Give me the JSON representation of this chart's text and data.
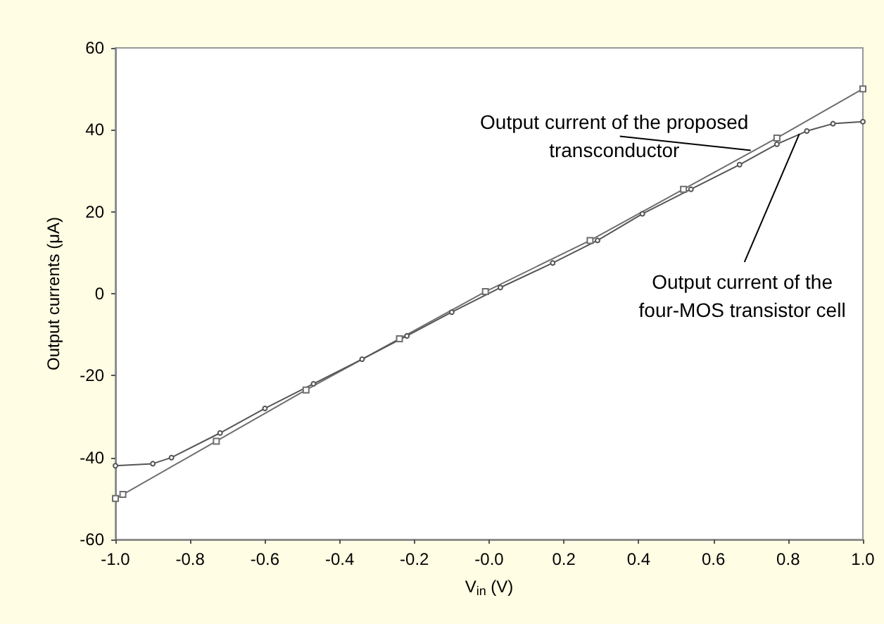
{
  "chart_data": {
    "type": "line",
    "xlabel": "V$_{in}$ (V)",
    "ylabel": "Output currents (μA)",
    "xlim": [
      -1,
      1
    ],
    "xticks": [
      {
        "value": -1,
        "label": "-1.0"
      },
      {
        "value": -0.8,
        "label": "-0.8"
      },
      {
        "value": -0.6,
        "label": "-0.6"
      },
      {
        "value": -0.4,
        "label": "-0.4"
      },
      {
        "value": -0.2,
        "label": "-0.2"
      },
      {
        "value": 0,
        "label": "-0.0"
      },
      {
        "value": 0.2,
        "label": "0.2"
      },
      {
        "value": 0.4,
        "label": "0.4"
      },
      {
        "value": 0.6,
        "label": "0.6"
      },
      {
        "value": 0.8,
        "label": "0.8"
      },
      {
        "value": 1,
        "label": "1.0"
      }
    ],
    "ylim": [
      -60,
      60
    ],
    "yticks": [
      -60,
      -40,
      -20,
      0,
      20,
      40,
      60
    ],
    "grid": false,
    "series": [
      {
        "color": "#6e6e6e",
        "marker": "square",
        "x": [
          -1,
          -0.98,
          -0.73,
          -0.49,
          -0.24,
          -0.01,
          0.27,
          0.52,
          0.77,
          1
        ],
        "values": [
          -50,
          -49,
          -36,
          -23.5,
          -11,
          0.5,
          13,
          25.5,
          38,
          50
        ]
      },
      {
        "color": "#555555",
        "marker": "circle",
        "x": [
          -1,
          -0.9,
          -0.85,
          -0.72,
          -0.6,
          -0.47,
          -0.34,
          -0.22,
          -0.1,
          0.03,
          0.17,
          0.29,
          0.41,
          0.54,
          0.67,
          0.77,
          0.85,
          0.92,
          1
        ],
        "values": [
          -42,
          -41.5,
          -40,
          -34,
          -28,
          -22,
          -16,
          -10.3,
          -4.5,
          1.5,
          7.5,
          13,
          19.5,
          25.5,
          31.5,
          36.5,
          39.7,
          41.5,
          42
        ]
      }
    ],
    "annotations": [
      {
        "text": "Output current of the proposed\ntransconductor",
        "x": 0.7,
        "y": 35
      },
      {
        "text": "Output current of the\nfour-MOS transistor cell",
        "x": 0.83,
        "y": 39
      }
    ]
  }
}
